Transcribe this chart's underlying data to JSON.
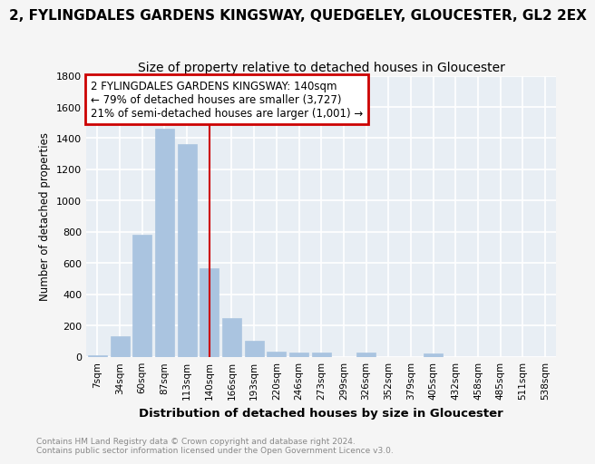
{
  "suptitle": "2, FYLINGDALES GARDENS KINGSWAY, QUEDGELEY, GLOUCESTER, GL2 2EX",
  "title": "Size of property relative to detached houses in Gloucester",
  "xlabel": "Distribution of detached houses by size in Gloucester",
  "ylabel": "Number of detached properties",
  "categories": [
    "7sqm",
    "34sqm",
    "60sqm",
    "87sqm",
    "113sqm",
    "140sqm",
    "166sqm",
    "193sqm",
    "220sqm",
    "246sqm",
    "273sqm",
    "299sqm",
    "326sqm",
    "352sqm",
    "379sqm",
    "405sqm",
    "432sqm",
    "458sqm",
    "485sqm",
    "511sqm",
    "538sqm"
  ],
  "values": [
    10,
    130,
    780,
    1460,
    1360,
    565,
    250,
    105,
    35,
    25,
    25,
    0,
    25,
    0,
    0,
    20,
    0,
    0,
    0,
    0,
    0
  ],
  "bar_color": "#aac4e0",
  "vline_color": "#cc0000",
  "vline_index": 5,
  "annotation_text": "2 FYLINGDALES GARDENS KINGSWAY: 140sqm\n← 79% of detached houses are smaller (3,727)\n21% of semi-detached houses are larger (1,001) →",
  "annotation_box_edgecolor": "#cc0000",
  "ylim": [
    0,
    1800
  ],
  "yticks": [
    0,
    200,
    400,
    600,
    800,
    1000,
    1200,
    1400,
    1600,
    1800
  ],
  "footer1": "Contains HM Land Registry data © Crown copyright and database right 2024.",
  "footer2": "Contains public sector information licensed under the Open Government Licence v3.0.",
  "plot_bg_color": "#e8eef4",
  "fig_bg_color": "#f5f5f5",
  "grid_color": "#ffffff",
  "title_fontsize": 10,
  "suptitle_fontsize": 11
}
